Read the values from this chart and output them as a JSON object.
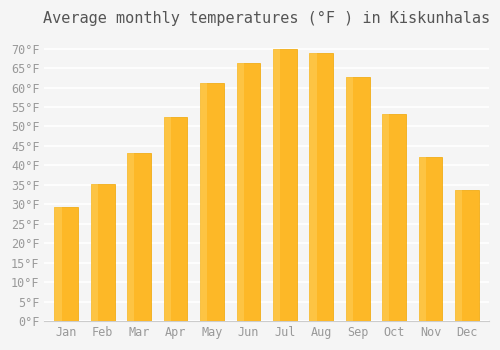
{
  "title": "Average monthly temperatures (°F ) in Kiskunhalas",
  "months": [
    "Jan",
    "Feb",
    "Mar",
    "Apr",
    "May",
    "Jun",
    "Jul",
    "Aug",
    "Sep",
    "Oct",
    "Nov",
    "Dec"
  ],
  "values": [
    29.3,
    35.1,
    43.3,
    52.5,
    61.3,
    66.4,
    69.8,
    68.9,
    62.8,
    53.1,
    42.1,
    33.8
  ],
  "bar_color": "#FDB827",
  "bar_edge_color": "#F0A500",
  "background_color": "#F5F5F5",
  "grid_color": "#FFFFFF",
  "text_color": "#999999",
  "ylim": [
    0,
    73
  ],
  "yticks": [
    0,
    5,
    10,
    15,
    20,
    25,
    30,
    35,
    40,
    45,
    50,
    55,
    60,
    65,
    70
  ],
  "title_fontsize": 11,
  "tick_fontsize": 8.5
}
